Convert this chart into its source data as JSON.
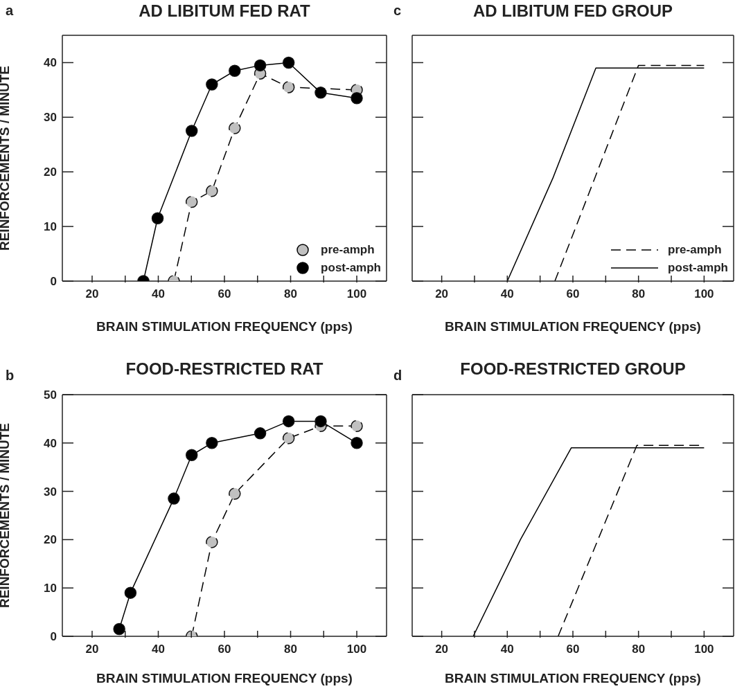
{
  "chart_data": [
    {
      "type": "line",
      "title": "AD LIBITUM FED RAT",
      "annotations": [
        "a"
      ],
      "xlabel": "BRAIN STIMULATION FREQUENCY (pps)",
      "ylabel": "REINFORCEMENTS / MINUTE",
      "xlim": [
        11,
        109
      ],
      "ylim": [
        0,
        45
      ],
      "xticks": [
        20,
        {
          "value": 30,
          "label": null
        },
        40,
        {
          "value": 50,
          "label": null
        },
        60,
        {
          "value": 70,
          "label": null
        },
        80,
        {
          "value": 90,
          "label": null
        },
        100
      ],
      "yticks": [
        0,
        10,
        20,
        30,
        40
      ],
      "marker": "circle",
      "legend": "bottom right",
      "grid": false,
      "series": [
        {
          "name": "pre-amph",
          "color": "#c0c0c0",
          "line_style": "dashed",
          "x": [
            44.7,
            50.1,
            56.2,
            63.1,
            70.8,
            79.4,
            100
          ],
          "values": [
            0,
            14.5,
            16.5,
            28,
            38,
            35.5,
            35
          ]
        },
        {
          "name": "post-amph",
          "color": "#000000",
          "line_style": "solid",
          "x": [
            35.5,
            39.8,
            50.1,
            56.2,
            63.1,
            70.8,
            79.4,
            89.1,
            100
          ],
          "values": [
            0,
            11.5,
            27.5,
            36,
            38.5,
            39.5,
            40,
            34.5,
            33.5
          ]
        }
      ]
    },
    {
      "type": "line",
      "title": "AD LIBITUM FED GROUP",
      "annotations": [
        "c"
      ],
      "xlabel": "BRAIN STIMULATION FREQUENCY (pps)",
      "xlim": [
        11,
        109
      ],
      "ylim": [
        0,
        45
      ],
      "xticks": [
        20,
        {
          "value": 30,
          "label": null
        },
        40,
        {
          "value": 50,
          "label": null
        },
        60,
        {
          "value": 70,
          "label": null
        },
        80,
        {
          "value": 90,
          "label": null
        },
        100
      ],
      "yticks": [
        0,
        10,
        20,
        30,
        40
      ],
      "tick_labels": "x",
      "marker": "none",
      "legend": "bottom right",
      "grid": false,
      "series": [
        {
          "name": "pre-amph",
          "color": "#000000",
          "line_style": "dashed",
          "x": [
            54.5,
            80,
            100
          ],
          "values": [
            0,
            39.5,
            39.5
          ]
        },
        {
          "name": "post-amph",
          "color": "#000000",
          "line_style": "solid",
          "x": [
            40,
            54,
            67,
            100
          ],
          "values": [
            0,
            19,
            39,
            39
          ]
        }
      ]
    },
    {
      "type": "line",
      "title": "FOOD-RESTRICTED RAT",
      "annotations": [
        "b"
      ],
      "xlabel": "BRAIN STIMULATION FREQUENCY (pps)",
      "ylabel": "REINFORCEMENTS / MINUTE",
      "xlim": [
        11,
        109
      ],
      "ylim": [
        0,
        50
      ],
      "xticks": [
        20,
        {
          "value": 30,
          "label": null
        },
        40,
        {
          "value": 50,
          "label": null
        },
        60,
        {
          "value": 70,
          "label": null
        },
        80,
        {
          "value": 90,
          "label": null
        },
        100
      ],
      "yticks": [
        0,
        10,
        20,
        30,
        40,
        50
      ],
      "marker": "circle",
      "grid": false,
      "series": [
        {
          "color": "#c0c0c0",
          "line_style": "dashed",
          "x": [
            50.1,
            56.2,
            63.1,
            79.4,
            89.1,
            100
          ],
          "values": [
            0,
            19.5,
            29.5,
            41,
            43.5,
            43.5
          ]
        },
        {
          "color": "#000000",
          "line_style": "solid",
          "x": [
            28.2,
            31.6,
            44.7,
            50.1,
            56.2,
            70.8,
            79.4,
            89.1,
            100
          ],
          "values": [
            1.5,
            9,
            28.5,
            37.5,
            40,
            42,
            44.5,
            44.5,
            40
          ]
        }
      ]
    },
    {
      "type": "line",
      "title": "FOOD-RESTRICTED GROUP",
      "annotations": [
        "d"
      ],
      "xlabel": "BRAIN STIMULATION FREQUENCY (pps)",
      "xlim": [
        11,
        109
      ],
      "ylim": [
        0,
        50
      ],
      "xticks": [
        20,
        {
          "value": 30,
          "label": null
        },
        40,
        {
          "value": 50,
          "label": null
        },
        60,
        {
          "value": 70,
          "label": null
        },
        80,
        {
          "value": 90,
          "label": null
        },
        100
      ],
      "yticks": [
        0,
        10,
        20,
        30,
        40,
        50
      ],
      "tick_labels": "x",
      "marker": "none",
      "grid": false,
      "series": [
        {
          "color": "#000000",
          "line_style": "dashed",
          "x": [
            55.5,
            79.5,
            100
          ],
          "values": [
            0,
            39.5,
            39.5
          ]
        },
        {
          "color": "#000000",
          "line_style": "solid",
          "x": [
            29.6,
            44,
            59.5,
            100
          ],
          "values": [
            0,
            20,
            39,
            39
          ]
        }
      ]
    }
  ]
}
